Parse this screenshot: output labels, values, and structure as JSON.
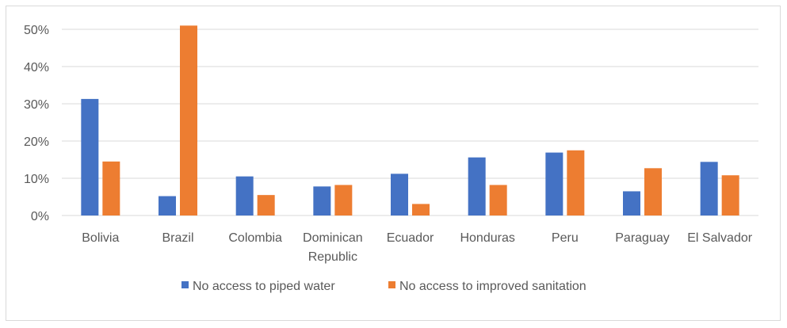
{
  "chart_data": {
    "type": "bar",
    "title": "",
    "xlabel": "",
    "ylabel": "",
    "categories": [
      "Bolivia",
      "Brazil",
      "Colombia",
      "Dominican Republic",
      "Ecuador",
      "Honduras",
      "Peru",
      "Paraguay",
      "El Salvador"
    ],
    "category_lines": [
      [
        "Bolivia"
      ],
      [
        "Brazil"
      ],
      [
        "Colombia"
      ],
      [
        "Dominican",
        "Republic"
      ],
      [
        "Ecuador"
      ],
      [
        "Honduras"
      ],
      [
        "Peru"
      ],
      [
        "Paraguay"
      ],
      [
        "El Salvador"
      ]
    ],
    "series": [
      {
        "name": "No access to piped water",
        "color": "#4472c4",
        "values": [
          31.3,
          5.2,
          10.5,
          7.8,
          11.2,
          15.6,
          16.9,
          6.5,
          14.4
        ]
      },
      {
        "name": "No access to improved sanitation",
        "color": "#ed7d31",
        "values": [
          14.5,
          51.0,
          5.5,
          8.2,
          3.1,
          8.2,
          17.5,
          12.7,
          10.8
        ]
      }
    ],
    "ylim": [
      0,
      50
    ],
    "yticks": [
      0,
      10,
      20,
      30,
      40,
      50
    ],
    "ytick_labels": [
      "0%",
      "10%",
      "20%",
      "30%",
      "40%",
      "50%"
    ],
    "grid": true,
    "legend_position": "bottom"
  }
}
